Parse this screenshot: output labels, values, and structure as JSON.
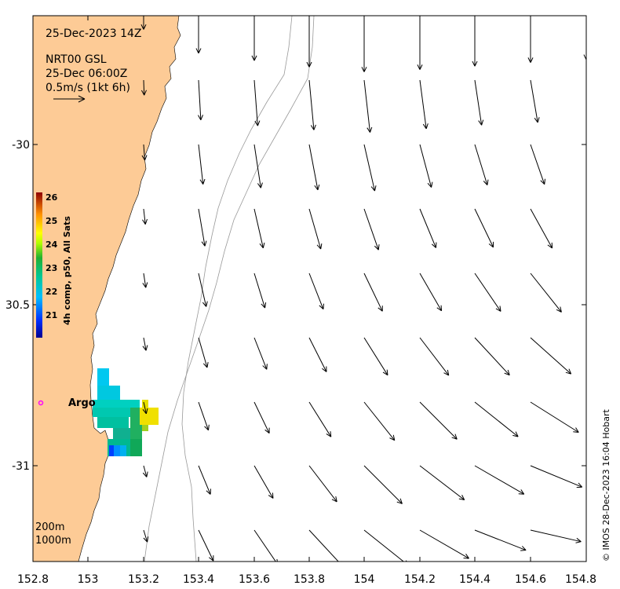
{
  "map": {
    "timestamp": "25-Dec-2023 14Z",
    "product": "NRT00 GSL",
    "valid_time": "25-Dec 06:00Z",
    "scale_label": "0.5m/s (1kt 6h)",
    "credit": "© IMOS 28-Dec-2023 16:04 Hobart",
    "isobath_labels": [
      "200m",
      "1000m"
    ],
    "float_label": "Argo",
    "colors": {
      "land": "#fdcb96",
      "isobath": "#999999",
      "float_marker": "#ff00ff"
    }
  },
  "x_ticks": [
    "152.8",
    "153",
    "153.2",
    "153.4",
    "153.6",
    "153.8",
    "154",
    "154.2",
    "154.4",
    "154.6",
    "154.8"
  ],
  "y_ticks": [
    "-30",
    "30.5",
    "-31"
  ],
  "colorbar": {
    "title": "4h comp, p50, All Sats",
    "ticks": [
      "26",
      "25",
      "24",
      "23",
      "22",
      "21"
    ]
  }
}
